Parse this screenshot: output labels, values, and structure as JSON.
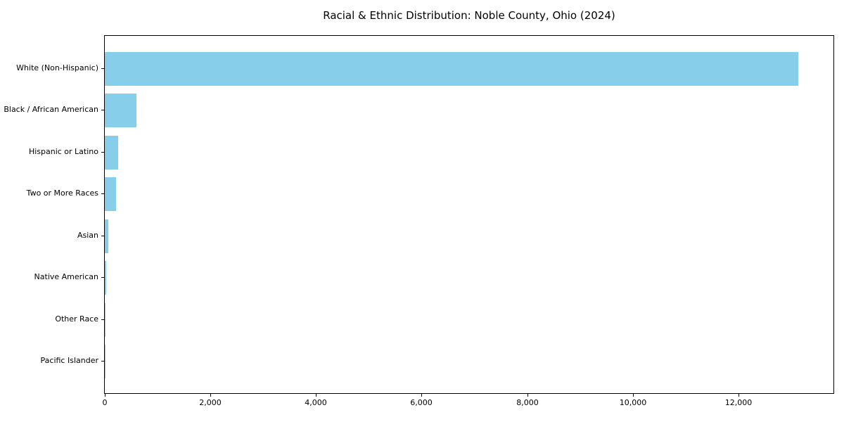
{
  "chart_data": {
    "type": "bar",
    "orientation": "horizontal",
    "title": "Racial & Ethnic Distribution: Noble County, Ohio (2024)",
    "categories": [
      "White (Non-Hispanic)",
      "Black / African American",
      "Hispanic or Latino",
      "Two or More Races",
      "Asian",
      "Native American",
      "Other Race",
      "Pacific Islander"
    ],
    "values": [
      13140,
      595,
      255,
      210,
      70,
      20,
      10,
      3
    ],
    "xlabel": "",
    "ylabel": "",
    "xlim": [
      0,
      13800
    ],
    "x_tick_values": [
      0,
      2000,
      4000,
      6000,
      8000,
      10000,
      12000
    ],
    "x_tick_labels": [
      "0",
      "2,000",
      "4,000",
      "6,000",
      "8,000",
      "10,000",
      "12,000"
    ],
    "bar_color": "#87CEEB",
    "grid": false,
    "legend": "none"
  }
}
